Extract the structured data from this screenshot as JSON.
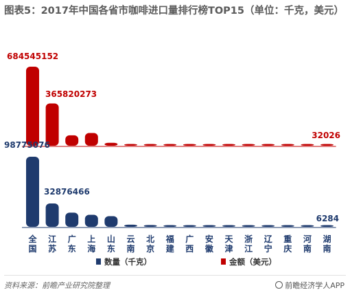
{
  "title": "图表5：2017年中国各省市咖啡进口量排行榜TOP15（单位：千克，美元）",
  "chart_data": {
    "type": "bar",
    "categories": [
      "全国",
      "江苏",
      "广东",
      "上海",
      "山东",
      "云南",
      "北京",
      "福建",
      "广西",
      "安徽",
      "天津",
      "浙江",
      "辽宁",
      "重庆",
      "河南",
      "湖南"
    ],
    "series": [
      {
        "name": "金额（美元）",
        "color": "#c00000",
        "values": [
          684545152,
          365820273,
          90000000,
          110000000,
          25000000,
          7000000,
          6000000,
          5000000,
          4000000,
          3000000,
          2500000,
          2000000,
          1500000,
          1000000,
          500000,
          32026
        ],
        "labels": [
          "684545152",
          "365820273",
          "",
          "",
          "",
          "",
          "",
          "",
          "",
          "",
          "",
          "",
          "",
          "",
          "",
          "32026"
        ]
      },
      {
        "name": "数量（千克）",
        "color": "#1f3b6e",
        "values": [
          98775076,
          32876466,
          20000000,
          17000000,
          15000000,
          3000000,
          2500000,
          2000000,
          1800000,
          1500000,
          1200000,
          1000000,
          800000,
          500000,
          300000,
          6284
        ],
        "labels": [
          "98775076",
          "32876466",
          "",
          "",
          "",
          "",
          "",
          "",
          "",
          "",
          "",
          "",
          "",
          "",
          "",
          "6284"
        ]
      }
    ],
    "legend": {
      "placement": "bottom",
      "entries": [
        "数量（千克）",
        "金额（美元）"
      ]
    },
    "grid": false
  },
  "footer": {
    "source": "资料来源：前瞻产业研究院整理",
    "brand": "前瞻经济学人APP"
  }
}
